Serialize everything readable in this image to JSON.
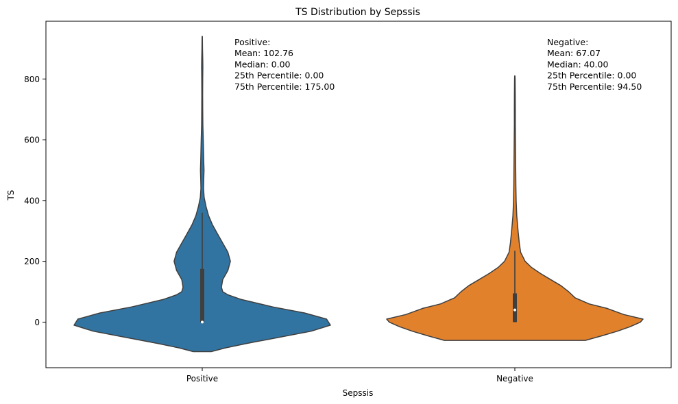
{
  "chart_data": {
    "type": "violin",
    "title": "TS Distribution by Sepssis",
    "xlabel": "Sepssis",
    "ylabel": "TS",
    "ylim": [
      -150,
      990
    ],
    "yticks": [
      0,
      200,
      400,
      600,
      800
    ],
    "grid": false,
    "categories": [
      "Positive",
      "Negative"
    ],
    "colors": [
      "#3274a1",
      "#e1812c"
    ],
    "violins": [
      {
        "category": "Positive",
        "min": 0,
        "max": 940,
        "whisker_low": 0,
        "whisker_high": 360,
        "q1": 0,
        "median": 0,
        "q3": 175,
        "mean": 102.76,
        "kde_extent": [
          -97,
          940
        ],
        "density_profile": [
          [
            -97,
            0.07
          ],
          [
            -85,
            0.18
          ],
          [
            -70,
            0.35
          ],
          [
            -50,
            0.6
          ],
          [
            -30,
            0.85
          ],
          [
            -10,
            1.0
          ],
          [
            10,
            0.97
          ],
          [
            30,
            0.8
          ],
          [
            50,
            0.55
          ],
          [
            75,
            0.3
          ],
          [
            90,
            0.2
          ],
          [
            100,
            0.16
          ],
          [
            115,
            0.15
          ],
          [
            140,
            0.16
          ],
          [
            170,
            0.2
          ],
          [
            200,
            0.22
          ],
          [
            230,
            0.2
          ],
          [
            260,
            0.16
          ],
          [
            290,
            0.12
          ],
          [
            320,
            0.08
          ],
          [
            350,
            0.05
          ],
          [
            380,
            0.03
          ],
          [
            410,
            0.015
          ],
          [
            440,
            0.01
          ],
          [
            470,
            0.012
          ],
          [
            500,
            0.014
          ],
          [
            530,
            0.012
          ],
          [
            560,
            0.01
          ],
          [
            600,
            0.008
          ],
          [
            650,
            0.005
          ],
          [
            700,
            0.004
          ],
          [
            750,
            0.003
          ],
          [
            800,
            0.004
          ],
          [
            840,
            0.005
          ],
          [
            870,
            0.004
          ],
          [
            900,
            0.002
          ],
          [
            940,
            0.001
          ]
        ],
        "annotation": [
          "Positive:",
          "Mean: 102.76",
          "Median: 0.00",
          "25th Percentile: 0.00",
          "75th Percentile: 175.00"
        ]
      },
      {
        "category": "Negative",
        "min": 0,
        "max": 800,
        "whisker_low": 0,
        "whisker_high": 235,
        "q1": 0,
        "median": 40,
        "q3": 94.5,
        "mean": 67.07,
        "kde_extent": [
          -60,
          810
        ],
        "density_profile": [
          [
            -60,
            0.55
          ],
          [
            -45,
            0.68
          ],
          [
            -30,
            0.8
          ],
          [
            -15,
            0.9
          ],
          [
            0,
            0.98
          ],
          [
            10,
            1.0
          ],
          [
            25,
            0.85
          ],
          [
            45,
            0.72
          ],
          [
            60,
            0.58
          ],
          [
            80,
            0.47
          ],
          [
            100,
            0.42
          ],
          [
            120,
            0.36
          ],
          [
            140,
            0.28
          ],
          [
            160,
            0.2
          ],
          [
            180,
            0.13
          ],
          [
            200,
            0.08
          ],
          [
            230,
            0.045
          ],
          [
            260,
            0.035
          ],
          [
            300,
            0.025
          ],
          [
            350,
            0.015
          ],
          [
            400,
            0.01
          ],
          [
            450,
            0.008
          ],
          [
            500,
            0.007
          ],
          [
            550,
            0.006
          ],
          [
            600,
            0.005
          ],
          [
            650,
            0.004
          ],
          [
            700,
            0.004
          ],
          [
            750,
            0.003
          ],
          [
            800,
            0.002
          ],
          [
            810,
            0.001
          ]
        ],
        "annotation": [
          "Negative:",
          "Mean: 67.07",
          "Median: 40.00",
          "25th Percentile: 0.00",
          "75th Percentile: 94.50"
        ]
      }
    ]
  }
}
